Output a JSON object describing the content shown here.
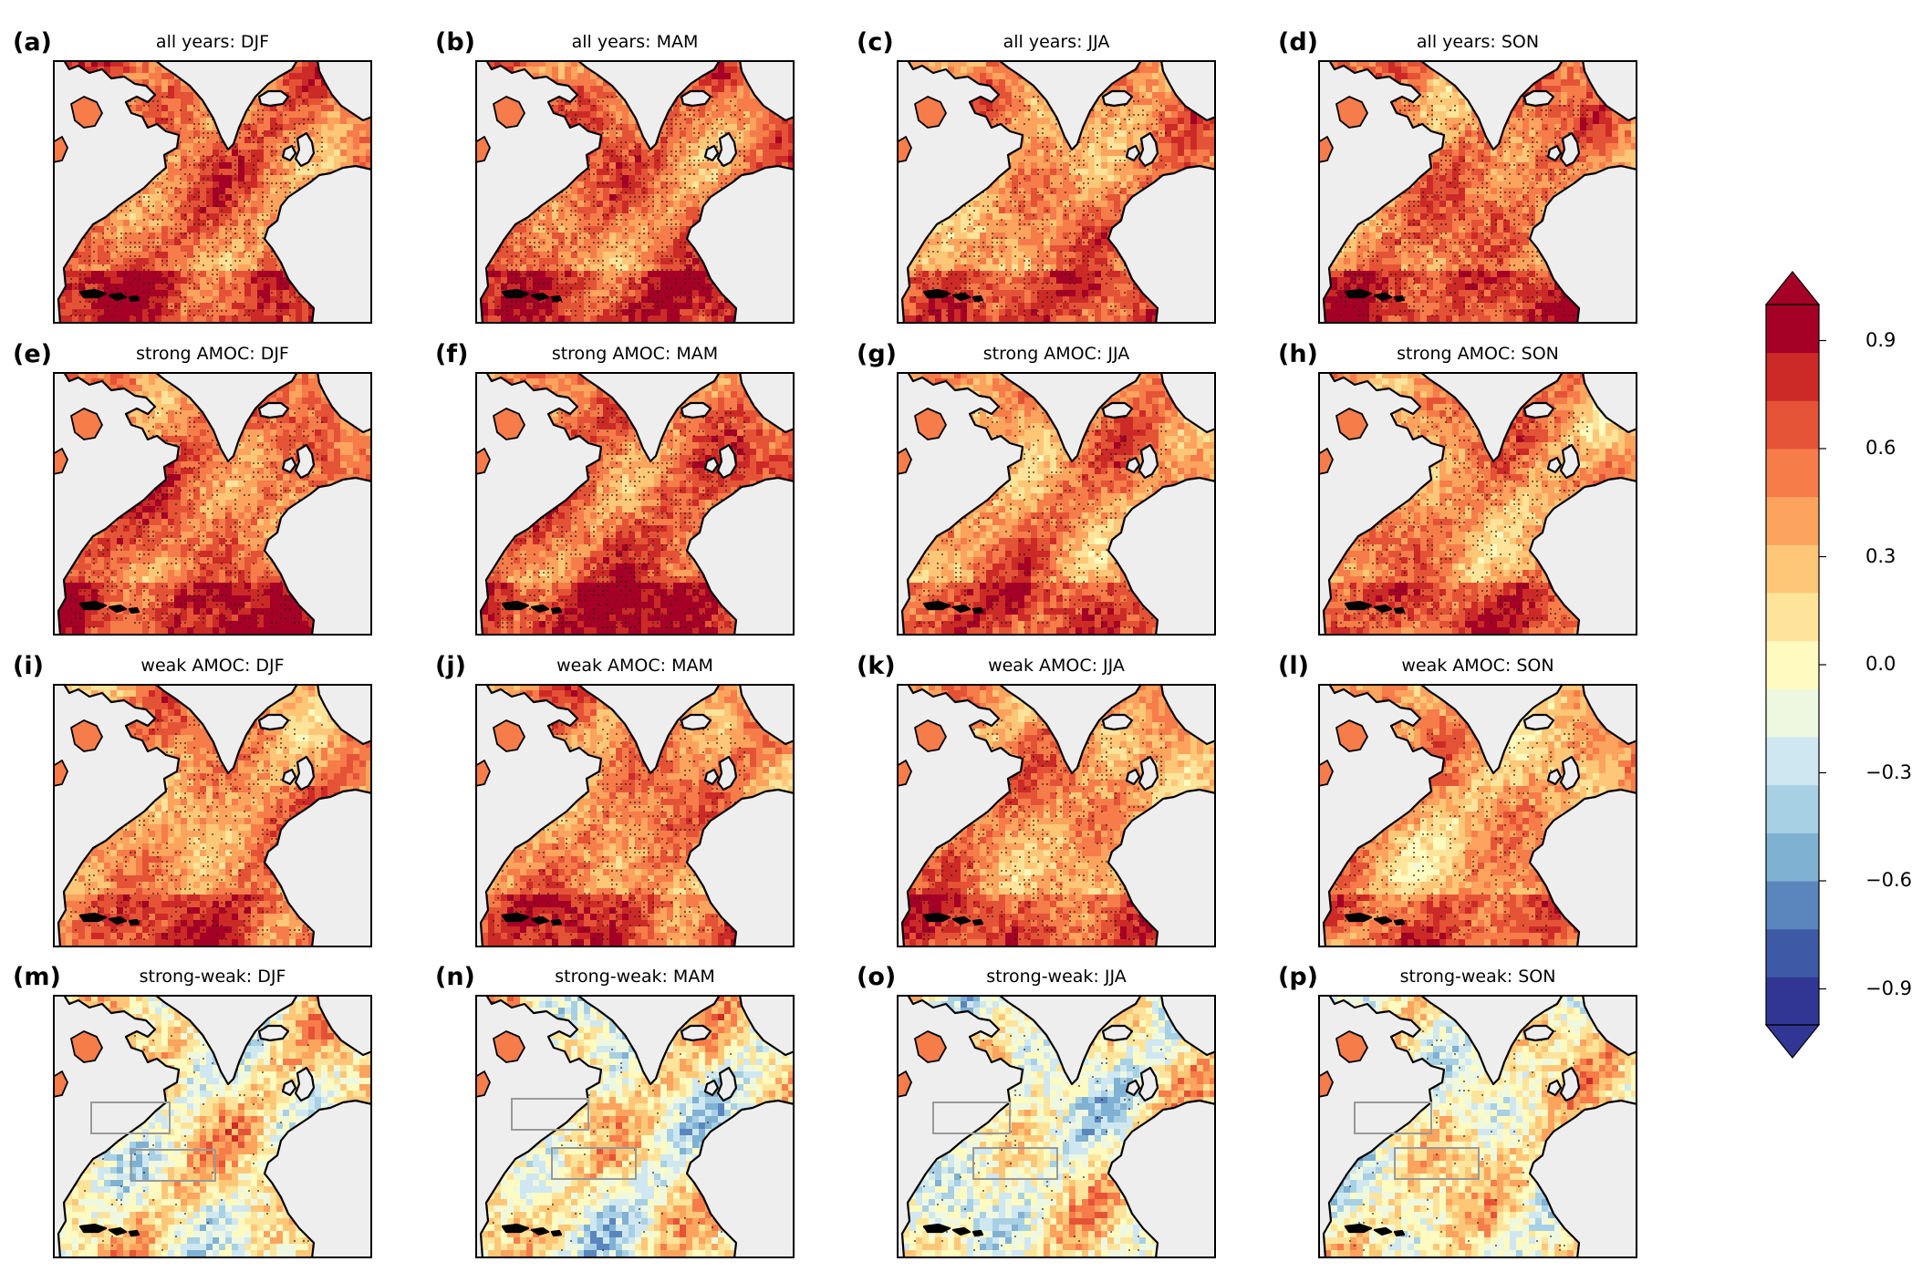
{
  "panels": [
    {
      "letter": "(a)",
      "title": "all years: DJF"
    },
    {
      "letter": "(b)",
      "title": "all years: MAM"
    },
    {
      "letter": "(c)",
      "title": "all years: JJA"
    },
    {
      "letter": "(d)",
      "title": "all years: SON"
    },
    {
      "letter": "(e)",
      "title": "strong AMOC: DJF"
    },
    {
      "letter": "(f)",
      "title": "strong AMOC: MAM"
    },
    {
      "letter": "(g)",
      "title": "strong AMOC: JJA"
    },
    {
      "letter": "(h)",
      "title": "strong AMOC: SON"
    },
    {
      "letter": "(i)",
      "title": "weak AMOC: DJF"
    },
    {
      "letter": "(j)",
      "title": "weak AMOC: MAM"
    },
    {
      "letter": "(k)",
      "title": "weak AMOC: JJA"
    },
    {
      "letter": "(l)",
      "title": "weak AMOC: SON"
    },
    {
      "letter": "(m)",
      "title": "strong-weak: DJF"
    },
    {
      "letter": "(n)",
      "title": "strong-weak: MAM"
    },
    {
      "letter": "(o)",
      "title": "strong-weak: JJA"
    },
    {
      "letter": "(p)",
      "title": "strong-weak: SON"
    }
  ],
  "colorbar": {
    "min": -1.0,
    "max": 1.0,
    "extend": "both",
    "ticks": [
      0.9,
      0.6,
      0.3,
      0.0,
      -0.3,
      -0.6,
      -0.9
    ],
    "tick_labels": [
      "0.9",
      "0.6",
      "0.3",
      "0.0",
      "−0.3",
      "−0.6",
      "−0.9"
    ],
    "colors": [
      "#313695",
      "#3e5aa6",
      "#5b86bd",
      "#7fb1d3",
      "#a8d0e4",
      "#cfe7f0",
      "#eef8e0",
      "#fefac0",
      "#fee49a",
      "#fdc777",
      "#fca35e",
      "#f67c4a",
      "#e55337",
      "#cc2a27",
      "#a50026"
    ]
  },
  "style": {
    "land": "#eeeeee",
    "coast": "#000000",
    "box": "#999999",
    "stipple": "#2a1a10"
  }
}
